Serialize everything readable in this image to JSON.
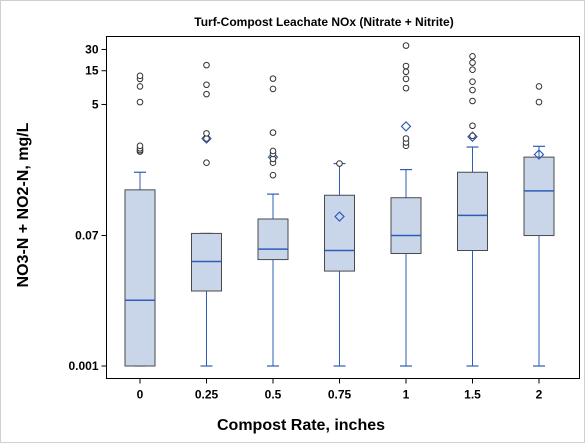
{
  "chart_data": {
    "type": "box",
    "title": "Turf-Compost Leachate NOx (Nitrate + Nitrite)",
    "xlabel": "Compost Rate, inches",
    "ylabel": "NO3-N + NO2-N, mg/L",
    "y_scale": "log",
    "ylim": [
      0.001,
      45
    ],
    "y_ticks": [
      {
        "value": 0.001,
        "label": "0.001"
      },
      {
        "value": 0.07,
        "label": "0.07"
      },
      {
        "value": 5,
        "label": "5"
      },
      {
        "value": 15,
        "label": "15"
      },
      {
        "value": 30,
        "label": "30"
      }
    ],
    "categories": [
      "0",
      "0.25",
      "0.5",
      "0.75",
      "1",
      "1.5",
      "2"
    ],
    "boxes": [
      {
        "category": "0",
        "min": 0.001,
        "q1": 0.001,
        "median": 0.0085,
        "q3": 0.31,
        "max": 0.55,
        "mean": null,
        "outliers": [
          1.08,
          1.13,
          1.2,
          1.3,
          5.4,
          9,
          11.5,
          12.7
        ]
      },
      {
        "category": "0.25",
        "min": 0.001,
        "q1": 0.0115,
        "median": 0.03,
        "q3": 0.075,
        "max": 0.075,
        "mean": 1.65,
        "outliers": [
          0.75,
          1.65,
          1.95,
          7,
          9.5,
          18
        ]
      },
      {
        "category": "0.5",
        "min": 0.001,
        "q1": 0.032,
        "median": 0.045,
        "q3": 0.12,
        "max": 0.27,
        "mean": 0.9,
        "outliers": [
          0.5,
          0.75,
          0.85,
          1.0,
          1.1,
          2.0,
          8.3,
          11.6
        ]
      },
      {
        "category": "0.75",
        "min": 0.001,
        "q1": 0.022,
        "median": 0.043,
        "q3": 0.26,
        "max": 0.73,
        "mean": 0.13,
        "outliers": [
          0.73
        ]
      },
      {
        "category": "1",
        "min": 0.001,
        "q1": 0.039,
        "median": 0.07,
        "q3": 0.24,
        "max": 0.6,
        "mean": 2.45,
        "outliers": [
          1.3,
          1.45,
          1.65,
          8.5,
          11.5,
          14.5,
          17.5,
          34
        ]
      },
      {
        "category": "1.5",
        "min": 0.001,
        "q1": 0.043,
        "median": 0.135,
        "q3": 0.55,
        "max": 1.25,
        "mean": 1.75,
        "outliers": [
          1.8,
          2.5,
          5.6,
          8,
          10.5,
          15.5,
          19.5,
          24
        ]
      },
      {
        "category": "2",
        "min": 0.001,
        "q1": 0.07,
        "median": 0.3,
        "q3": 0.9,
        "max": 1.28,
        "mean": 0.98,
        "outliers": [
          5.4,
          9
        ]
      }
    ],
    "colors": {
      "box_fill": "#c9d6ea",
      "box_stroke": "#4a4a4a",
      "whisker": "#2e5cb8",
      "median": "#2e5cb8",
      "mean_marker": "#2e5cb8",
      "outlier": "#333333",
      "frame": "#000000"
    }
  }
}
